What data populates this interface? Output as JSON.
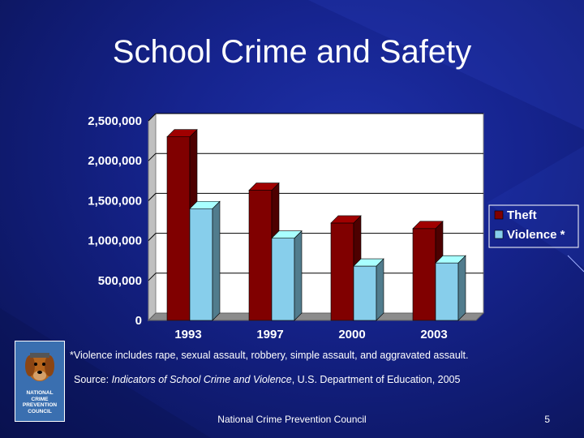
{
  "slide": {
    "title": "School Crime and Safety",
    "footnote": "*Violence includes rape, sexual assault, robbery, simple assault, and aggravated assault.",
    "source_prefix": "Source:  ",
    "source_title": "Indicators of School Crime and Violence",
    "source_suffix": ", U.S. Department of Education, 2005",
    "footer": "National Crime Prevention Council",
    "page_number": "5",
    "logo_text": "NATIONAL\nCRIME\nPREVENTION\nCOUNCIL"
  },
  "chart_data": {
    "type": "bar",
    "categories": [
      "1993",
      "1997",
      "2000",
      "2003"
    ],
    "series": [
      {
        "name": "Theft",
        "values": [
          2300000,
          1630000,
          1220000,
          1150000
        ],
        "color": "#800000"
      },
      {
        "name": "Violence *",
        "values": [
          1400000,
          1030000,
          680000,
          720000
        ],
        "color": "#87ceeb"
      }
    ],
    "yticks": [
      "0",
      "500,000",
      "1,000,000",
      "1,500,000",
      "2,000,000",
      "2,500,000"
    ],
    "ylim": [
      0,
      2500000
    ],
    "grid": true,
    "legend_position": "right",
    "plot_background": "#ffffff"
  }
}
